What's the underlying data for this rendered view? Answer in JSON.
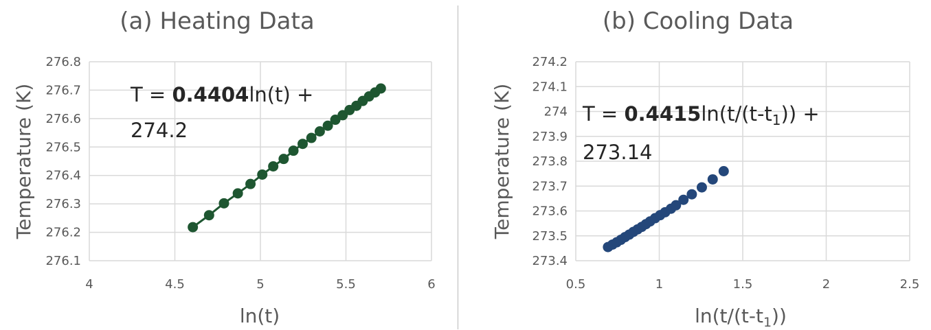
{
  "chart_data": [
    {
      "type": "line",
      "title": "(a) Heating Data",
      "xlabel": "ln(t)",
      "ylabel": "Temperature (K)",
      "xlim": [
        4,
        6
      ],
      "ylim": [
        276.1,
        276.8
      ],
      "xticks": [
        "4",
        "4.5",
        "5",
        "5.5",
        "6"
      ],
      "yticks": [
        "276.1",
        "276.2",
        "276.3",
        "276.4",
        "276.5",
        "276.6",
        "276.7",
        "276.8"
      ],
      "grid": true,
      "color": "#1e5631",
      "equation": {
        "prefix": "T = ",
        "coef": "0.4404",
        "rest": "ln(t) +",
        "line2": "274.2"
      },
      "series": [
        {
          "x": [
            4.605,
            4.7,
            4.787,
            4.868,
            4.942,
            5.011,
            5.075,
            5.136,
            5.193,
            5.247,
            5.298,
            5.347,
            5.394,
            5.438,
            5.481,
            5.521,
            5.561,
            5.598,
            5.635,
            5.67,
            5.704
          ],
          "y": [
            276.218,
            276.26,
            276.302,
            276.337,
            276.37,
            276.403,
            276.432,
            276.458,
            276.487,
            276.511,
            276.532,
            276.555,
            276.575,
            276.596,
            276.612,
            276.63,
            276.645,
            276.662,
            276.678,
            276.692,
            276.706
          ]
        }
      ]
    },
    {
      "type": "scatter",
      "title": "(b) Cooling Data",
      "xlabel": "ln(t/(t-t",
      "xlabel_sub": "1",
      "xlabel_end": "))",
      "ylabel": "Temperature (K)",
      "xlim": [
        0.5,
        2.5
      ],
      "ylim": [
        273.4,
        274.2
      ],
      "xticks": [
        "0.5",
        "1",
        "1.5",
        "2",
        "2.5"
      ],
      "yticks": [
        "273.4",
        "273.5",
        "273.6",
        "273.7",
        "273.8",
        "273.9",
        "274",
        "274.1",
        "274.2"
      ],
      "grid": true,
      "color": "#24477a",
      "equation": {
        "prefix": "T = ",
        "coef": "0.4415",
        "rest": "ln(t/(t-t",
        "sub": "1",
        "rest2": ")) +",
        "line2": "273.14"
      },
      "series": [
        {
          "x": [
            0.693,
            0.72,
            0.745,
            0.77,
            0.795,
            0.82,
            0.845,
            0.87,
            0.895,
            0.92,
            0.945,
            0.975,
            1.005,
            1.035,
            1.07,
            1.1,
            1.145,
            1.195,
            1.255,
            1.32,
            1.386
          ],
          "y": [
            273.455,
            273.465,
            273.474,
            273.484,
            273.495,
            273.505,
            273.516,
            273.526,
            273.536,
            273.547,
            273.558,
            273.571,
            273.583,
            273.595,
            273.609,
            273.623,
            273.645,
            273.667,
            273.695,
            273.727,
            273.76
          ]
        }
      ]
    }
  ]
}
